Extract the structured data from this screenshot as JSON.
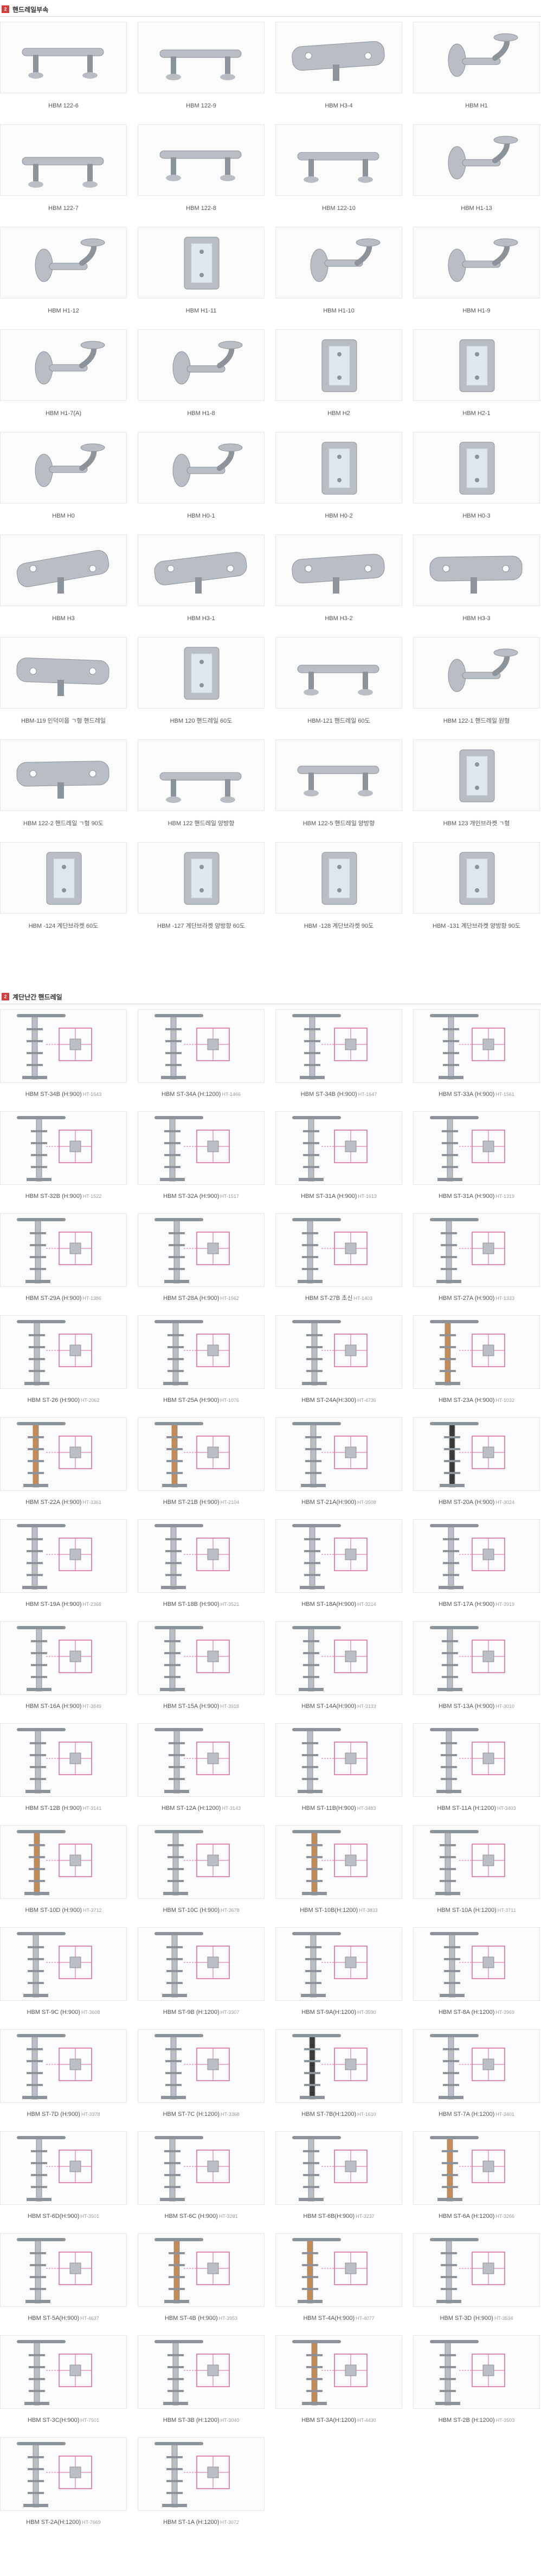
{
  "section1": {
    "badge": "2",
    "title": "핸드레일부속",
    "items": [
      {
        "label": "HBM 122-6",
        "icon": "bracket-bar-icon"
      },
      {
        "label": "HBM 122-9",
        "icon": "bracket-bar-icon"
      },
      {
        "label": "HBM H3-4",
        "icon": "bracket-plate-icon"
      },
      {
        "label": "HBM H1",
        "icon": "wall-bracket-icon"
      },
      {
        "label": "HBM 122-7",
        "icon": "bracket-bar-icon"
      },
      {
        "label": "HBM 122-8",
        "icon": "bracket-bar-icon"
      },
      {
        "label": "HBM 122-10",
        "icon": "bracket-bar-icon"
      },
      {
        "label": "HBM H1-13",
        "icon": "wall-bracket-icon"
      },
      {
        "label": "HBM H1-12",
        "icon": "wall-bracket-icon"
      },
      {
        "label": "HBM H1-11",
        "icon": "glass-clamp-icon"
      },
      {
        "label": "HBM H1-10",
        "icon": "wall-bracket-icon"
      },
      {
        "label": "HBM H1-9",
        "icon": "wall-bracket-icon"
      },
      {
        "label": "HBM H1-7(A)",
        "icon": "wall-bracket-icon"
      },
      {
        "label": "HBM H1-8",
        "icon": "wall-bracket-icon"
      },
      {
        "label": "HBM H2",
        "icon": "glass-clamp-icon"
      },
      {
        "label": "HBM H2-1",
        "icon": "glass-clamp-icon"
      },
      {
        "label": "HBM H0",
        "icon": "wall-bracket-icon"
      },
      {
        "label": "HBM H0-1",
        "icon": "wall-bracket-icon"
      },
      {
        "label": "HBM H0-2",
        "icon": "glass-clamp-icon"
      },
      {
        "label": "HBM H0-3",
        "icon": "glass-clamp-icon"
      },
      {
        "label": "HBM H3",
        "icon": "bracket-plate-icon"
      },
      {
        "label": "HBM H3-1",
        "icon": "bracket-plate-icon"
      },
      {
        "label": "HBM H3-2",
        "icon": "bracket-plate-icon"
      },
      {
        "label": "HBM H3-3",
        "icon": "bracket-plate-icon"
      },
      {
        "label": "HBM-119 인덕이음 ㄱ형 핸드레일",
        "icon": "bracket-plate-icon"
      },
      {
        "label": "HBM 120 핸드레일 60도",
        "icon": "glass-clamp-icon"
      },
      {
        "label": "HBM-121 핸드레일 60도",
        "icon": "bracket-bar-icon"
      },
      {
        "label": "HBM 122-1 핸드레일 원형",
        "icon": "wall-bracket-icon"
      },
      {
        "label": "HBM 122-2 핸드레일 ㄱ형 90도",
        "icon": "bracket-plate-icon"
      },
      {
        "label": "HBM 122 핸드레일 양방향",
        "icon": "bracket-bar-icon"
      },
      {
        "label": "HBM 122-5 핸드레일 양방향",
        "icon": "bracket-bar-icon"
      },
      {
        "label": "HBM 123 개인브라켓 ㄱ형",
        "icon": "glass-clamp-icon"
      },
      {
        "label": "HBM -124 계단브라켓 60도",
        "icon": "glass-clamp-icon"
      },
      {
        "label": "HBM -127 계단브라켓 양방향 60도",
        "icon": "glass-clamp-icon"
      },
      {
        "label": "HBM -128 계단브라켓 90도",
        "icon": "glass-clamp-icon"
      },
      {
        "label": "HBM -131 계단브라켓 양방향 90도",
        "icon": "glass-clamp-icon"
      }
    ]
  },
  "section2": {
    "badge": "2",
    "title": "계단난간 핸드레일",
    "items": [
      {
        "label": "HBM ST-34B (H:900)",
        "sub": "HT-1643",
        "icon": "post-icon"
      },
      {
        "label": "HBM ST-34A (H:1200)",
        "sub": "HT-1466",
        "icon": "post-icon"
      },
      {
        "label": "HBM ST-34B (H:900)",
        "sub": "HT-1647",
        "icon": "post-icon"
      },
      {
        "label": "HBM ST-33A (H:900)",
        "sub": "HT-1561",
        "icon": "post-icon"
      },
      {
        "label": "HBM ST-32B (H:900)",
        "sub": "HT-1522",
        "icon": "post-icon"
      },
      {
        "label": "HBM ST-32A (H:900)",
        "sub": "HT-1517",
        "icon": "post-icon"
      },
      {
        "label": "HBM ST-31A (H:900)",
        "sub": "HT-1613",
        "icon": "post-icon"
      },
      {
        "label": "HBM ST-31A (H:900)",
        "sub": "HT-1319",
        "icon": "post-icon"
      },
      {
        "label": "HBM ST-29A (H:900)",
        "sub": "HT-1386",
        "icon": "post-icon"
      },
      {
        "label": "HBM ST-28A (H:900)",
        "sub": "HT-1562",
        "icon": "post-icon"
      },
      {
        "label": "HBM ST-27B 초신",
        "sub": "HT-1403",
        "icon": "post-icon"
      },
      {
        "label": "HBM ST-27A (H:900)",
        "sub": "HT-1333",
        "icon": "post-icon"
      },
      {
        "label": "HBM ST-26 (H:900)",
        "sub": "HT-2062",
        "icon": "post-icon"
      },
      {
        "label": "HBM ST-25A (H:900)",
        "sub": "HT-1076",
        "icon": "post-icon"
      },
      {
        "label": "HBM ST-24A(H:300)",
        "sub": "HT-4736",
        "icon": "post-icon"
      },
      {
        "label": "HBM ST-23A (H:900)",
        "sub": "HT-1032",
        "icon": "wood-post-icon"
      },
      {
        "label": "HBM ST-22A (H:900)",
        "sub": "HT-3361",
        "icon": "wood-post-icon"
      },
      {
        "label": "HBM ST-21B (H:900)",
        "sub": "HT-2104",
        "icon": "wood-post-icon"
      },
      {
        "label": "HBM ST-21A(H:900)",
        "sub": "HT-3508",
        "icon": "post-icon"
      },
      {
        "label": "HBM ST-20A (H:900)",
        "sub": "HT-3024",
        "icon": "dark-post-icon"
      },
      {
        "label": "HBM ST-19A (H:900)",
        "sub": "HT-2368",
        "icon": "post-icon"
      },
      {
        "label": "HBM ST-18B (H:900)",
        "sub": "HT-3521",
        "icon": "post-icon"
      },
      {
        "label": "HBM ST-18A(H:900)",
        "sub": "HT-3214",
        "icon": "post-icon"
      },
      {
        "label": "HBM ST-17A (H:900)",
        "sub": "HT-3919",
        "icon": "post-icon"
      },
      {
        "label": "HBM ST-16A (H:900)",
        "sub": "HT-3849",
        "icon": "post-icon"
      },
      {
        "label": "HBM ST-15A (H:900)",
        "sub": "HT-3918",
        "icon": "post-icon"
      },
      {
        "label": "HBM ST-14A(H:900)",
        "sub": "HT-3133",
        "icon": "post-icon"
      },
      {
        "label": "HBM ST-13A (H:900)",
        "sub": "HT-3010",
        "icon": "post-icon"
      },
      {
        "label": "HBM ST-12B (H:900)",
        "sub": "HT-3141",
        "icon": "post-icon"
      },
      {
        "label": "HBM ST-12A (H:1200)",
        "sub": "HT-3143",
        "icon": "post-icon"
      },
      {
        "label": "HBM ST-11B(H:900)",
        "sub": "HT-3483",
        "icon": "post-icon"
      },
      {
        "label": "HBM ST-11A (H:1200)",
        "sub": "HT-3403",
        "icon": "post-icon"
      },
      {
        "label": "HBM ST-10D (H:900)",
        "sub": "HT-3712",
        "icon": "wood-post-icon"
      },
      {
        "label": "HBM ST-10C (H:900)",
        "sub": "HT-3678",
        "icon": "post-icon"
      },
      {
        "label": "HBM ST-10B(H:1200)",
        "sub": "HT-3833",
        "icon": "wood-post-icon"
      },
      {
        "label": "HBM ST-10A (H:1200)",
        "sub": "HT-3711",
        "icon": "post-icon"
      },
      {
        "label": "HBM ST-9C (H:900)",
        "sub": "HT-3608",
        "icon": "post-icon"
      },
      {
        "label": "HBM ST-9B (H:1200)",
        "sub": "HT-3307",
        "icon": "post-icon"
      },
      {
        "label": "HBM ST-9A(H:1200)",
        "sub": "HT-3590",
        "icon": "post-icon"
      },
      {
        "label": "HBM ST-8A (H:1200)",
        "sub": "HT-3969",
        "icon": "post-icon"
      },
      {
        "label": "HBM ST-7D (H:900)",
        "sub": "HT-3378",
        "icon": "post-icon"
      },
      {
        "label": "HBM ST-7C (H:1200)",
        "sub": "HT-3368",
        "icon": "post-icon"
      },
      {
        "label": "HBM ST-7B(H:1200)",
        "sub": "HT-1610",
        "icon": "dark-post-icon"
      },
      {
        "label": "HBM ST-7A (H:1200)",
        "sub": "HT-3401",
        "icon": "post-icon"
      },
      {
        "label": "HBM ST-6D(H:900)",
        "sub": "HT-3501",
        "icon": "post-icon"
      },
      {
        "label": "HBM ST-6C (H:900)",
        "sub": "HT-3281",
        "icon": "post-icon"
      },
      {
        "label": "HBM ST-6B(H:900)",
        "sub": "HT-3237",
        "icon": "post-icon"
      },
      {
        "label": "HBM ST-6A (H:1200)",
        "sub": "HT-3266",
        "icon": "wood-post-icon"
      },
      {
        "label": "HBM ST-5A(H:900)",
        "sub": "HT-4637",
        "icon": "post-icon"
      },
      {
        "label": "HBM ST-4B (H:900)",
        "sub": "HT-3953",
        "icon": "wood-post-icon"
      },
      {
        "label": "HBM ST-4A(H:900)",
        "sub": "HT-4077",
        "icon": "wood-post-icon"
      },
      {
        "label": "HBM ST-3D (H:900)",
        "sub": "HT-3534",
        "icon": "post-icon"
      },
      {
        "label": "HBM ST-3C(H:900)",
        "sub": "HT-7501",
        "icon": "post-icon"
      },
      {
        "label": "HBM ST-3B (H:1200)",
        "sub": "HT-3040",
        "icon": "post-icon"
      },
      {
        "label": "HBM ST-3A(H:1200)",
        "sub": "HT-4430",
        "icon": "wood-post-icon"
      },
      {
        "label": "HBM ST-2B (H:1200)",
        "sub": "HT-3503",
        "icon": "post-icon"
      },
      {
        "label": "HBM ST-2A(H:1200)",
        "sub": "HT-7669",
        "icon": "post-icon"
      },
      {
        "label": "HBM ST-1A (H:1200)",
        "sub": "HT-3072",
        "icon": "post-icon"
      }
    ]
  },
  "colors": {
    "badge": "#d93a3a",
    "steel": "#b9bec4",
    "steel_dark": "#8d939a",
    "glass": "#dfe8ee",
    "wood": "#c58b52",
    "dark": "#3a3a3a",
    "guide": "#d6669a"
  }
}
